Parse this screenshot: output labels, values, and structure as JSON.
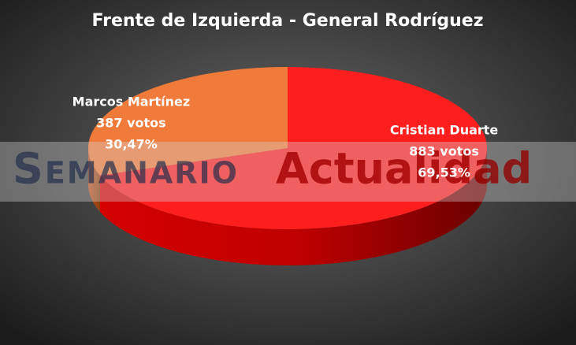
{
  "chart_data": {
    "type": "pie3d",
    "title": "Frente de Izquierda - General Rodríguez",
    "categories": [
      "Cristian  Duarte",
      "Marcos  Martínez"
    ],
    "values": [
      883,
      387
    ],
    "value_labels": [
      "883 votos",
      "387 votos"
    ],
    "percents": [
      69.53,
      30.47
    ],
    "percent_labels": [
      "69,53%",
      "30,47%"
    ],
    "colors": [
      "#ff1e1e",
      "#f07a3a"
    ],
    "watermark": [
      "Semanario",
      "Actualidad"
    ]
  }
}
